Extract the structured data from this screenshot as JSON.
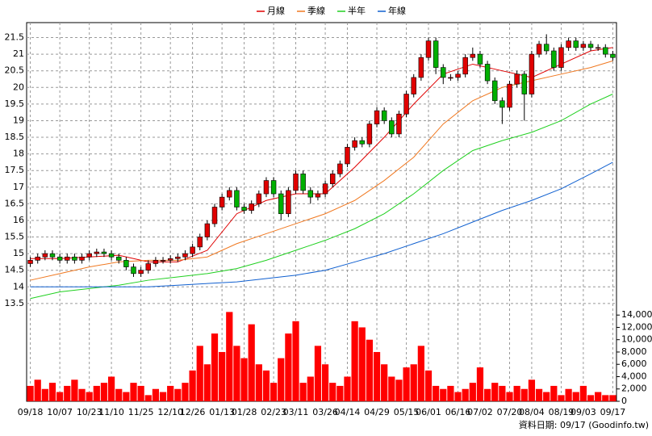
{
  "chart_data": [
    {
      "type": "candlestick",
      "up_color": "#e00000",
      "down_color": "#00b000",
      "categories": [
        "09/18",
        null,
        null,
        null,
        "10/07",
        null,
        null,
        null,
        "10/23",
        null,
        null,
        "11/10",
        null,
        null,
        null,
        "11/25",
        null,
        null,
        null,
        "12/10",
        null,
        null,
        "12/26",
        null,
        null,
        null,
        "01/13",
        null,
        null,
        "01/28",
        null,
        null,
        null,
        "02/23",
        null,
        null,
        "03/11",
        null,
        null,
        null,
        "03/26",
        null,
        null,
        "04/14",
        null,
        null,
        null,
        "04/29",
        null,
        null,
        null,
        "05/15",
        null,
        null,
        "06/01",
        null,
        null,
        null,
        "06/16",
        null,
        null,
        "07/02",
        null,
        null,
        null,
        "07/20",
        null,
        null,
        "08/04",
        null,
        null,
        null,
        "08/19",
        null,
        null,
        "09/03",
        null,
        null,
        null,
        "09/17"
      ],
      "open": [
        14.7,
        14.8,
        14.9,
        15.0,
        14.9,
        14.8,
        14.9,
        14.8,
        14.9,
        15.0,
        15.05,
        15.0,
        14.9,
        14.8,
        14.6,
        14.4,
        14.5,
        14.7,
        14.8,
        14.8,
        14.85,
        14.9,
        15.0,
        15.2,
        15.5,
        15.9,
        16.4,
        16.7,
        16.9,
        16.4,
        16.3,
        16.5,
        16.8,
        17.2,
        16.8,
        16.2,
        16.9,
        17.4,
        16.9,
        16.7,
        16.8,
        17.1,
        17.4,
        17.7,
        18.2,
        18.4,
        18.3,
        18.9,
        19.3,
        19.0,
        18.6,
        19.2,
        19.8,
        20.3,
        20.9,
        21.4,
        20.6,
        20.3,
        20.3,
        20.4,
        20.9,
        21.0,
        20.7,
        20.2,
        19.6,
        19.4,
        20.1,
        20.4,
        19.8,
        21.0,
        21.3,
        21.1,
        20.6,
        21.2,
        21.4,
        21.2,
        21.3,
        21.2,
        21.2,
        21.0
      ],
      "high": [
        14.9,
        15.0,
        15.1,
        15.1,
        15.0,
        15.0,
        15.0,
        15.0,
        15.1,
        15.15,
        15.15,
        15.1,
        15.0,
        14.9,
        14.7,
        14.6,
        14.8,
        14.9,
        14.9,
        14.95,
        15.0,
        15.1,
        15.3,
        15.6,
        16.0,
        16.5,
        16.8,
        17.0,
        17.0,
        16.5,
        16.6,
        16.9,
        17.3,
        17.3,
        16.9,
        17.0,
        17.5,
        17.5,
        17.0,
        16.9,
        17.2,
        17.5,
        17.8,
        18.3,
        18.5,
        18.5,
        19.0,
        19.4,
        19.4,
        19.1,
        19.3,
        19.9,
        20.4,
        21.0,
        21.5,
        21.5,
        20.7,
        20.4,
        20.5,
        21.0,
        21.2,
        21.1,
        20.8,
        20.3,
        19.7,
        20.2,
        20.5,
        20.5,
        21.1,
        21.4,
        21.6,
        21.2,
        21.3,
        21.5,
        21.5,
        21.4,
        21.4,
        21.3,
        21.3,
        21.1
      ],
      "low": [
        14.6,
        14.7,
        14.8,
        14.8,
        14.7,
        14.7,
        14.7,
        14.7,
        14.8,
        14.9,
        14.9,
        14.8,
        14.7,
        14.5,
        14.3,
        14.3,
        14.4,
        14.6,
        14.7,
        14.7,
        14.75,
        14.8,
        14.9,
        15.1,
        15.4,
        15.8,
        16.3,
        16.6,
        16.3,
        16.2,
        16.2,
        16.4,
        16.7,
        16.7,
        16.0,
        16.1,
        16.8,
        16.8,
        16.5,
        16.6,
        16.7,
        17.0,
        17.3,
        17.6,
        18.1,
        18.2,
        18.2,
        18.8,
        18.9,
        18.5,
        18.5,
        19.1,
        19.7,
        20.2,
        20.8,
        20.4,
        20.1,
        20.2,
        20.2,
        20.3,
        20.8,
        20.6,
        20.1,
        19.5,
        18.9,
        19.3,
        20.0,
        19.0,
        19.7,
        20.9,
        21.0,
        20.5,
        20.5,
        21.1,
        21.1,
        21.1,
        21.1,
        21.1,
        20.9,
        20.8
      ],
      "close": [
        14.8,
        14.9,
        15.0,
        14.9,
        14.8,
        14.9,
        14.8,
        14.9,
        15.0,
        15.05,
        15.0,
        14.9,
        14.8,
        14.6,
        14.4,
        14.5,
        14.7,
        14.8,
        14.8,
        14.85,
        14.9,
        15.0,
        15.2,
        15.5,
        15.9,
        16.4,
        16.7,
        16.9,
        16.4,
        16.3,
        16.5,
        16.8,
        17.2,
        16.8,
        16.2,
        16.9,
        17.4,
        16.9,
        16.7,
        16.8,
        17.1,
        17.4,
        17.7,
        18.2,
        18.4,
        18.3,
        18.9,
        19.3,
        19.0,
        18.6,
        19.2,
        19.8,
        20.3,
        20.9,
        21.4,
        20.6,
        20.3,
        20.3,
        20.4,
        20.9,
        21.0,
        20.7,
        20.2,
        19.6,
        19.4,
        20.1,
        20.4,
        19.8,
        21.0,
        21.3,
        21.1,
        20.6,
        21.2,
        21.4,
        21.2,
        21.3,
        21.2,
        21.2,
        21.0,
        20.9
      ],
      "series": [
        {
          "name": "月線",
          "color": "#e00000",
          "x": [
            0,
            4,
            8,
            12,
            16,
            20,
            24,
            28,
            32,
            36,
            40,
            44,
            48,
            52,
            56,
            60,
            64,
            68,
            72,
            76,
            79
          ],
          "values": [
            14.85,
            14.85,
            14.9,
            14.95,
            14.75,
            14.75,
            15.1,
            16.2,
            16.6,
            16.8,
            16.8,
            17.6,
            18.5,
            19.5,
            20.4,
            20.7,
            20.5,
            20.3,
            20.7,
            21.1,
            21.2
          ]
        },
        {
          "name": "季線",
          "color": "#f07820",
          "x": [
            0,
            4,
            8,
            12,
            16,
            20,
            24,
            28,
            32,
            36,
            40,
            44,
            48,
            52,
            56,
            60,
            64,
            68,
            72,
            76,
            79
          ],
          "values": [
            14.2,
            14.4,
            14.6,
            14.75,
            14.8,
            14.8,
            14.9,
            15.3,
            15.6,
            15.9,
            16.2,
            16.6,
            17.2,
            17.9,
            18.9,
            19.6,
            20.0,
            20.2,
            20.4,
            20.6,
            20.8
          ]
        },
        {
          "name": "半年",
          "color": "#20d020",
          "x": [
            0,
            4,
            8,
            12,
            16,
            20,
            24,
            28,
            32,
            36,
            40,
            44,
            48,
            52,
            56,
            60,
            64,
            68,
            72,
            76,
            79
          ],
          "values": [
            13.65,
            13.85,
            13.95,
            14.05,
            14.2,
            14.3,
            14.4,
            14.55,
            14.8,
            15.1,
            15.4,
            15.75,
            16.2,
            16.8,
            17.5,
            18.1,
            18.4,
            18.65,
            19.0,
            19.5,
            19.8
          ]
        },
        {
          "name": "年線",
          "color": "#1060d0",
          "x": [
            0,
            4,
            8,
            12,
            16,
            20,
            24,
            28,
            32,
            36,
            40,
            44,
            48,
            52,
            56,
            60,
            64,
            68,
            72,
            76,
            79
          ],
          "values": [
            14.0,
            14.0,
            14.0,
            14.0,
            14.0,
            14.05,
            14.1,
            14.15,
            14.25,
            14.35,
            14.5,
            14.75,
            15.0,
            15.3,
            15.6,
            15.95,
            16.3,
            16.6,
            16.95,
            17.4,
            17.75
          ]
        }
      ],
      "ylim": [
        13.4,
        21.95
      ],
      "yticks": [
        13.5,
        14,
        14.5,
        15,
        15.5,
        16,
        16.5,
        17,
        17.5,
        18,
        18.5,
        19,
        19.5,
        20,
        20.5,
        21,
        21.5
      ],
      "grid": true,
      "source_note": "資料日期: 09/17  (Goodinfo.tw)"
    },
    {
      "type": "bar",
      "color": "#ff0000",
      "values": [
        2500,
        3500,
        2000,
        3000,
        1500,
        2500,
        3500,
        2000,
        1500,
        2500,
        3000,
        4000,
        2000,
        1500,
        3000,
        2500,
        1000,
        2000,
        1500,
        2500,
        2000,
        3000,
        5000,
        9000,
        6000,
        11000,
        8000,
        14500,
        9000,
        7000,
        12500,
        6000,
        5000,
        3000,
        7000,
        11000,
        13000,
        3000,
        4000,
        9000,
        6000,
        3000,
        2500,
        4000,
        13000,
        12000,
        10000,
        8000,
        6000,
        4000,
        3500,
        5500,
        6000,
        9000,
        5000,
        2500,
        2000,
        2500,
        1500,
        2000,
        3000,
        5500,
        2000,
        3000,
        2500,
        1500,
        2500,
        2000,
        3500,
        2000,
        1500,
        2500,
        1000,
        2000,
        1500,
        2500,
        1000,
        1500,
        1000,
        1000
      ],
      "ylim": [
        0,
        15600
      ],
      "yticks": [
        0,
        {
          "value": 2000,
          "label": "2,000"
        },
        {
          "value": 4000,
          "label": "4,000"
        },
        {
          "value": 6000,
          "label": "6,000"
        },
        {
          "value": 8000,
          "label": "8,000"
        },
        {
          "value": 10000,
          "label": "10,000"
        },
        {
          "value": 12000,
          "label": "12,000"
        },
        {
          "value": 14000,
          "label": "14,000"
        }
      ]
    }
  ]
}
